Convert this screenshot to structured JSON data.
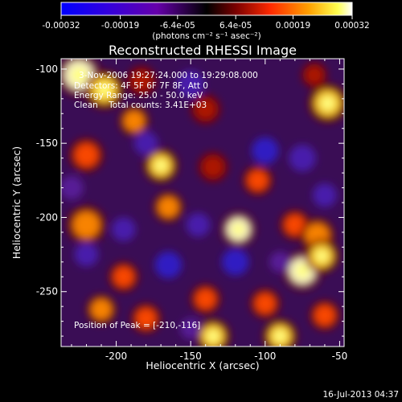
{
  "figure": {
    "title": "Reconstructed RHESSI Image",
    "xlabel": "Heliocentric X (arcsec)",
    "ylabel": "Heliocentric Y (arcsec)",
    "timestamp": "16-Jul-2013 04:37"
  },
  "overlay": {
    "line1": "3-Nov-2006 19:27:24.000 to 19:29:08.000",
    "line2": "Detectors: 4F 5F 6F 7F 8F, Att 0",
    "line3": "Energy Range: 25.0 - 50.0 keV",
    "line4": "Clean    Total counts: 3.41E+03",
    "peak": "Position of Peak = [-210,-116]"
  },
  "colorbar": {
    "tick_labels": [
      "-0.00032",
      "-0.00019",
      "-6.4e-05",
      "6.4e-05",
      "0.00019",
      "0.00032"
    ],
    "tick_values": [
      -0.00032,
      -0.00019,
      -6.4e-05,
      6.4e-05,
      0.00019,
      0.00032
    ],
    "range": [
      -0.00032,
      0.00032
    ],
    "unit_label": "(photons cm⁻² s⁻¹ asec⁻²)",
    "colors": [
      "#0000ff",
      "#4400cc",
      "#000000",
      "#7a0000",
      "#ff2a00",
      "#ff9a00",
      "#ffff40",
      "#ffffff"
    ]
  },
  "chart_data": {
    "type": "heatmap",
    "title": "Reconstructed RHESSI Image",
    "xlabel": "Heliocentric X (arcsec)",
    "ylabel": "Heliocentric Y (arcsec)",
    "xlim": [
      -237,
      -47
    ],
    "ylim": [
      -287,
      -93
    ],
    "xticks": [
      -200,
      -150,
      -100,
      -50
    ],
    "yticks": [
      -100,
      -150,
      -200,
      -250
    ],
    "grid": false,
    "peak_position": [
      -210,
      -116
    ],
    "blobs": [
      {
        "x": -225,
        "y": -104,
        "v": 1.0,
        "s": 10
      },
      {
        "x": -208,
        "y": -114,
        "v": 0.9,
        "s": 9
      },
      {
        "x": -183,
        "y": -108,
        "v": 0.45,
        "s": 7
      },
      {
        "x": -188,
        "y": -135,
        "v": 0.65,
        "s": 7
      },
      {
        "x": -140,
        "y": -127,
        "v": 0.45,
        "s": 7
      },
      {
        "x": -58,
        "y": -123,
        "v": 0.85,
        "s": 9
      },
      {
        "x": -67,
        "y": -104,
        "v": 0.4,
        "s": 6
      },
      {
        "x": -220,
        "y": -158,
        "v": 0.6,
        "s": 8
      },
      {
        "x": -170,
        "y": -165,
        "v": 0.9,
        "s": 8
      },
      {
        "x": -135,
        "y": -166,
        "v": 0.4,
        "s": 7
      },
      {
        "x": -105,
        "y": -175,
        "v": 0.55,
        "s": 7
      },
      {
        "x": -165,
        "y": -193,
        "v": 0.65,
        "s": 7
      },
      {
        "x": -220,
        "y": -205,
        "v": 0.75,
        "s": 9
      },
      {
        "x": -118,
        "y": -208,
        "v": 0.95,
        "s": 8
      },
      {
        "x": -80,
        "y": -205,
        "v": 0.5,
        "s": 7
      },
      {
        "x": -65,
        "y": -212,
        "v": 0.7,
        "s": 8
      },
      {
        "x": -75,
        "y": -236,
        "v": 1.0,
        "s": 9
      },
      {
        "x": -62,
        "y": -226,
        "v": 0.9,
        "s": 8
      },
      {
        "x": -195,
        "y": -240,
        "v": 0.6,
        "s": 7
      },
      {
        "x": -140,
        "y": -255,
        "v": 0.55,
        "s": 7
      },
      {
        "x": -100,
        "y": -258,
        "v": 0.55,
        "s": 7
      },
      {
        "x": -210,
        "y": -262,
        "v": 0.75,
        "s": 7
      },
      {
        "x": -180,
        "y": -268,
        "v": 0.5,
        "s": 7
      },
      {
        "x": -135,
        "y": -280,
        "v": 0.9,
        "s": 8
      },
      {
        "x": -90,
        "y": -280,
        "v": 0.85,
        "s": 8
      },
      {
        "x": -60,
        "y": -266,
        "v": 0.6,
        "s": 7
      },
      {
        "x": -165,
        "y": -232,
        "v": -0.8,
        "s": 9
      },
      {
        "x": -120,
        "y": -230,
        "v": -1.0,
        "s": 9
      },
      {
        "x": -100,
        "y": -155,
        "v": -0.8,
        "s": 9
      },
      {
        "x": -195,
        "y": -208,
        "v": -0.7,
        "s": 8
      },
      {
        "x": -150,
        "y": -110,
        "v": -0.7,
        "s": 9
      },
      {
        "x": -75,
        "y": -160,
        "v": -0.6,
        "s": 9
      },
      {
        "x": -220,
        "y": -225,
        "v": -0.7,
        "s": 8
      },
      {
        "x": -180,
        "y": -150,
        "v": -0.6,
        "s": 8
      },
      {
        "x": -145,
        "y": -205,
        "v": -0.6,
        "s": 8
      },
      {
        "x": -90,
        "y": -230,
        "v": -0.5,
        "s": 7
      },
      {
        "x": -230,
        "y": -180,
        "v": -0.5,
        "s": 8
      },
      {
        "x": -150,
        "y": -275,
        "v": -0.4,
        "s": 7
      },
      {
        "x": -60,
        "y": -185,
        "v": -0.6,
        "s": 8
      }
    ]
  }
}
